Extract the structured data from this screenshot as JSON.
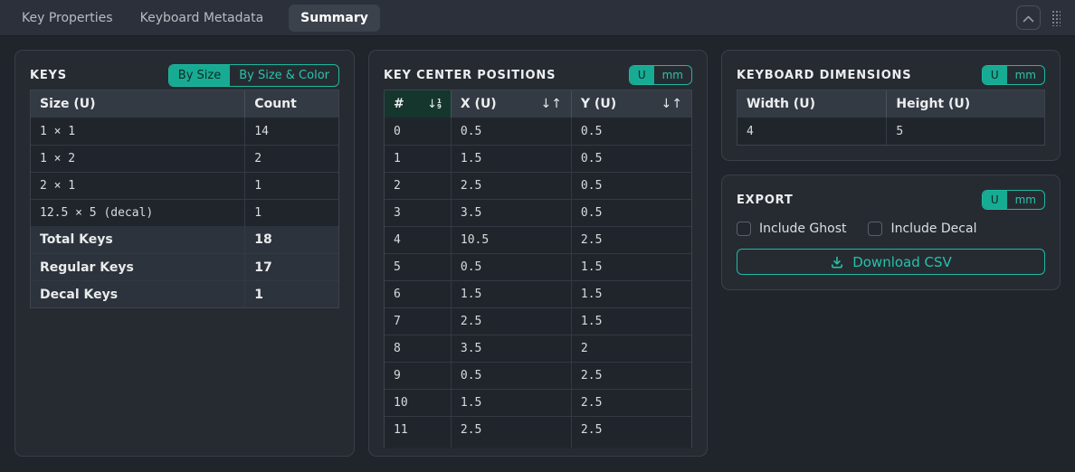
{
  "colors": {
    "accent": "#1db9a0",
    "accent_active_bg": "#17ab93",
    "accent_active_text": "#0d2b26",
    "page_bg": "#20242b",
    "panel_bg": "#262b32",
    "topbar_bg": "#2b303a",
    "table_header_bg": "#343a43",
    "sorted_header_bg": "#14362d"
  },
  "topbar": {
    "tabs": [
      {
        "label": "Key Properties",
        "active": false
      },
      {
        "label": "Keyboard Metadata",
        "active": false
      },
      {
        "label": "Summary",
        "active": true
      }
    ],
    "icons": {
      "collapse": "chevron-up-icon",
      "grip": "grip-dots-icon"
    }
  },
  "keys_panel": {
    "title": "KEYS",
    "group_toggle": {
      "options": [
        "By Size",
        "By Size & Color"
      ],
      "active": "By Size"
    },
    "table": {
      "headers": [
        "Size (U)",
        "Count"
      ],
      "rows": [
        [
          "1 × 1",
          "14"
        ],
        [
          "1 × 2",
          "2"
        ],
        [
          "2 × 1",
          "1"
        ],
        [
          "12.5 × 5 (decal)",
          "1"
        ]
      ],
      "summary_rows": [
        [
          "Total Keys",
          "18"
        ],
        [
          "Regular Keys",
          "17"
        ],
        [
          "Decal Keys",
          "1"
        ]
      ]
    }
  },
  "positions_panel": {
    "title": "KEY CENTER POSITIONS",
    "unit_toggle": {
      "options": [
        "U",
        "mm"
      ],
      "active": "U"
    },
    "table": {
      "headers": [
        "#",
        "X (U)",
        "Y (U)"
      ],
      "sort": {
        "column": "#",
        "direction": "ascending",
        "icon": "sort-numeric-asc",
        "digits": [
          "1",
          "9"
        ],
        "other_icon": "sort-both-arrows"
      },
      "rows": [
        [
          "0",
          "0.5",
          "0.5"
        ],
        [
          "1",
          "1.5",
          "0.5"
        ],
        [
          "2",
          "2.5",
          "0.5"
        ],
        [
          "3",
          "3.5",
          "0.5"
        ],
        [
          "4",
          "10.5",
          "2.5"
        ],
        [
          "5",
          "0.5",
          "1.5"
        ],
        [
          "6",
          "1.5",
          "1.5"
        ],
        [
          "7",
          "2.5",
          "1.5"
        ],
        [
          "8",
          "3.5",
          "2"
        ],
        [
          "9",
          "0.5",
          "2.5"
        ],
        [
          "10",
          "1.5",
          "2.5"
        ],
        [
          "11",
          "2.5",
          "2.5"
        ]
      ]
    }
  },
  "dimensions_panel": {
    "title": "KEYBOARD DIMENSIONS",
    "unit_toggle": {
      "options": [
        "U",
        "mm"
      ],
      "active": "U"
    },
    "table": {
      "headers": [
        "Width (U)",
        "Height (U)"
      ],
      "rows": [
        [
          "4",
          "5"
        ]
      ]
    }
  },
  "export_panel": {
    "title": "EXPORT",
    "unit_toggle": {
      "options": [
        "U",
        "mm"
      ],
      "active": "U"
    },
    "checkboxes": [
      {
        "label": "Include Ghost",
        "checked": false
      },
      {
        "label": "Include Decal",
        "checked": false
      }
    ],
    "download_button": {
      "label": "Download CSV",
      "icon": "download-icon"
    }
  }
}
